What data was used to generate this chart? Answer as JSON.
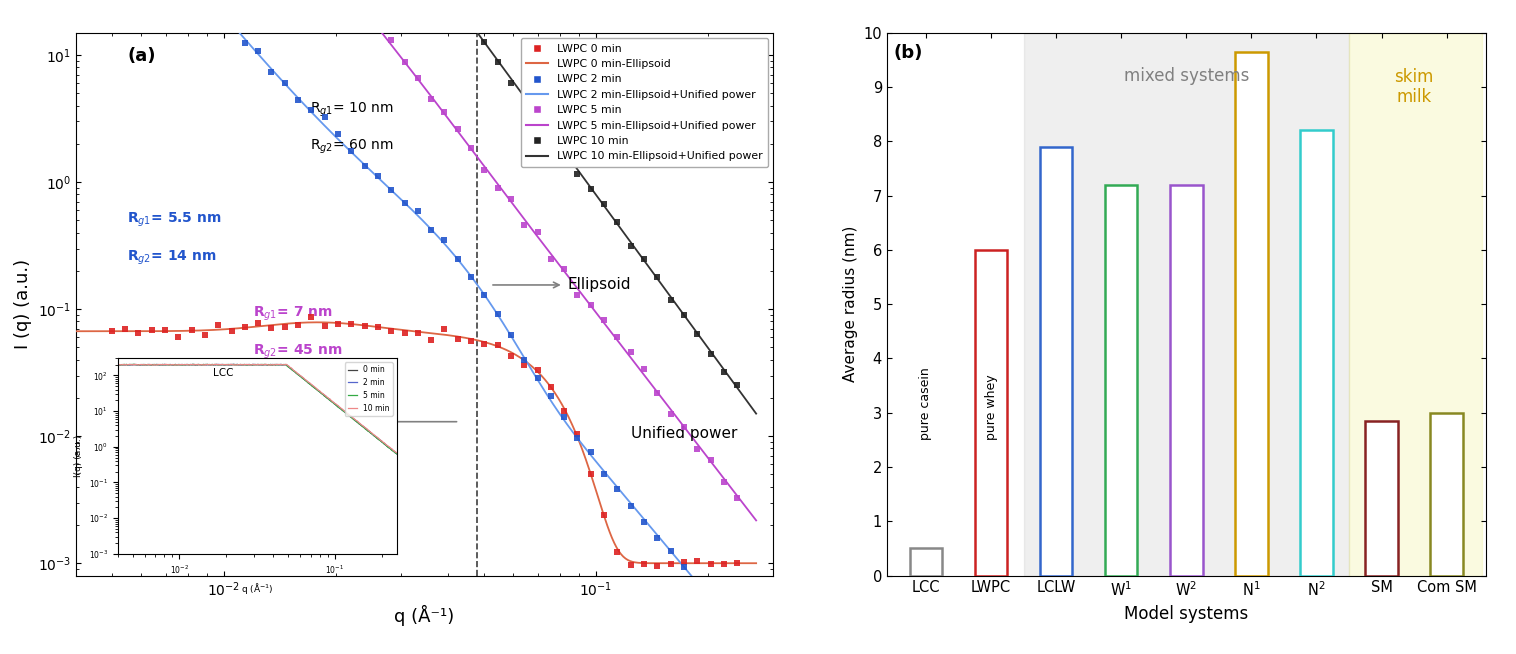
{
  "panel_a_label": "(a)",
  "panel_b_label": "(b)",
  "legend_entries": [
    {
      "label": "LWPC 0 min",
      "dot_color": "#dd2222",
      "line_color": "#dd6644"
    },
    {
      "label": "LWPC 0 min-Ellipsoid",
      "dot_color": null,
      "line_color": "#dd6644"
    },
    {
      "label": "LWPC 2 min",
      "dot_color": "#2255cc",
      "line_color": "#6699ee"
    },
    {
      "label": "LWPC 2 min-Ellipsoid+Unified power",
      "dot_color": null,
      "line_color": "#6699ee"
    },
    {
      "label": "LWPC 5 min",
      "dot_color": "#bb44cc",
      "line_color": "#bb44cc"
    },
    {
      "label": "LWPC 5 min-Ellipsoid+Unified power",
      "dot_color": null,
      "line_color": "#bb44cc"
    },
    {
      "label": "LWPC 10 min",
      "dot_color": "#222222",
      "line_color": "#222222"
    },
    {
      "label": "LWPC 10 min-Ellipsoid+Unified power",
      "dot_color": null,
      "line_color": "#222222"
    }
  ],
  "bar_categories": [
    "LCC",
    "LWPC",
    "LCLW",
    "W$^1$",
    "W$^2$",
    "N$^1$",
    "N$^2$",
    "SM",
    "Com SM"
  ],
  "bar_values": [
    0.5,
    6.0,
    7.9,
    7.2,
    7.2,
    9.65,
    8.2,
    2.85,
    3.0
  ],
  "bar_colors": [
    "#888888",
    "#cc2222",
    "#3366cc",
    "#33aa55",
    "#9955cc",
    "#cc9900",
    "#33cccc",
    "#882222",
    "#888822"
  ],
  "ylabel_b": "Average radius (nm)",
  "xlabel_b": "Model systems",
  "ylim_b": [
    0,
    10
  ],
  "xlabel_a": "q (Å⁻¹)",
  "ylabel_a": "I (q) (a.u.)",
  "dashed_line_x": 0.048,
  "inset_colors": [
    "#444444",
    "#5566cc",
    "#33aa44",
    "#ee8888"
  ],
  "inset_labels": [
    "0 min",
    "2 min",
    "5 min",
    "10 min"
  ]
}
